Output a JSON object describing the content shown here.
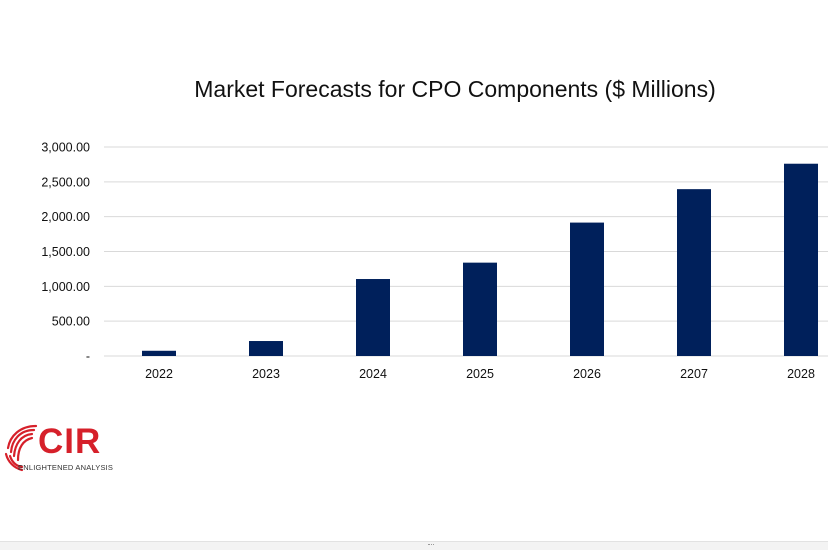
{
  "chart_data": {
    "type": "bar",
    "title": "Market Forecasts for CPO Components ($ Millions)",
    "categories": [
      "2022",
      "2023",
      "2024",
      "2025",
      "2026",
      "2207",
      "2028"
    ],
    "values": [
      75,
      215,
      1105,
      1340,
      1915,
      2395,
      2760
    ],
    "ylim": [
      0,
      3000
    ],
    "yticks": [
      0,
      500,
      1000,
      1500,
      2000,
      2500,
      3000
    ],
    "ytick_labels": [
      "-",
      "500.00",
      "1,000.00",
      "1,500.00",
      "2,000.00",
      "2,500.00",
      "3,000.00"
    ],
    "grid": true,
    "bar_color": "#00205b",
    "grid_color": "#d9d9d9"
  },
  "logo": {
    "name": "CIR",
    "tagline": "ENLIGHTENED ANALYSIS",
    "color": "#d6202a"
  }
}
